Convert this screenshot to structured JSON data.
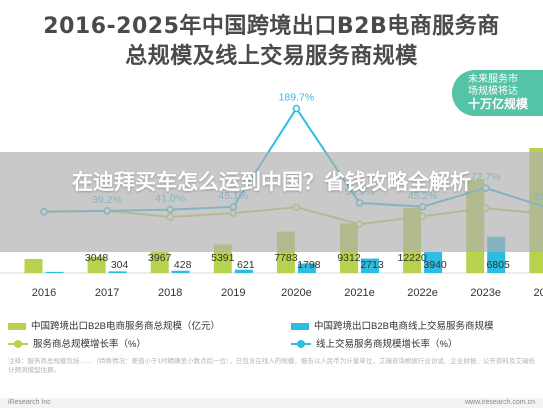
{
  "title": {
    "line1": "2016-2025年中国跨境出口B2B电商服务商",
    "line2": "总规模及线上交易服务商规模"
  },
  "badge": {
    "lines": [
      "未来服务市",
      "场规模将达",
      "十万亿规模"
    ]
  },
  "overlay": {
    "text": "在迪拜买车怎么运到中国？省钱攻略全解析"
  },
  "colors": {
    "bar_total": "#b7d34d",
    "bar_online": "#2dbde0",
    "line_total": "#b7d34d",
    "line_online": "#2dbde0"
  },
  "chart_data": {
    "type": "bar",
    "title": "2016-2025年中国跨境出口B2B电商服务商总规模及线上交易服务商规模",
    "categories": [
      "2016",
      "2017",
      "2018",
      "2019",
      "2020e",
      "2021e",
      "2022e",
      "2023e",
      "2024e"
    ],
    "series": [
      {
        "name": "中国跨境出口B2B电商服务商总规模（亿元）",
        "kind": "bar",
        "values": [
          2650,
          3048,
          3967,
          5391,
          7783,
          9312,
          12220,
          17500,
          23500
        ],
        "labels": [
          "",
          "3048",
          "3967",
          "5391",
          "7783",
          "9312",
          "12220",
          "",
          ""
        ]
      },
      {
        "name": "中国跨境出口B2B电商线上交易服务商规模",
        "kind": "bar",
        "values": [
          215,
          304,
          428,
          621,
          1798,
          2713,
          3940,
          6805,
          9743
        ],
        "labels": [
          "",
          "304",
          "428",
          "621",
          "1798",
          "2713",
          "3940",
          "6805",
          "9743"
        ]
      },
      {
        "name": "服务商总规模增长率（%）",
        "kind": "line",
        "values": [
          38.5,
          39.2,
          30.1,
          35.9,
          44.4,
          19.6,
          31.2,
          43.2,
          34.3
        ],
        "labels": [
          "",
          "",
          "",
          "",
          "",
          "",
          "",
          "",
          ""
        ]
      },
      {
        "name": "线上交易服务商规模增长率（%）",
        "kind": "line",
        "values": [
          37.8,
          39.2,
          41.0,
          45.1,
          189.7,
          50.9,
          45.2,
          72.7,
          43.2
        ],
        "labels": [
          "",
          "39.2%",
          "41.0%",
          "45.1%",
          "189.7%",
          "50.9%",
          "45.2%",
          "72.7%",
          "43.2%"
        ]
      }
    ],
    "bar_ylim": [
      0,
      25000
    ],
    "line_ylim": [
      0,
      200
    ],
    "legend_position": "bottom",
    "grid": false
  },
  "note": "注释：服务商总规模包括……（特殊情况：差值小于1时精确至小数点后一位），已包含在线人的规模，报告以人民币为计量单位，艾瑞咨询根据行业访谈、企业财报、公开资料及艾瑞统计预测模型估算。",
  "footer": {
    "left": "iResearch Inc",
    "right": "www.iresearch.com.cn"
  }
}
